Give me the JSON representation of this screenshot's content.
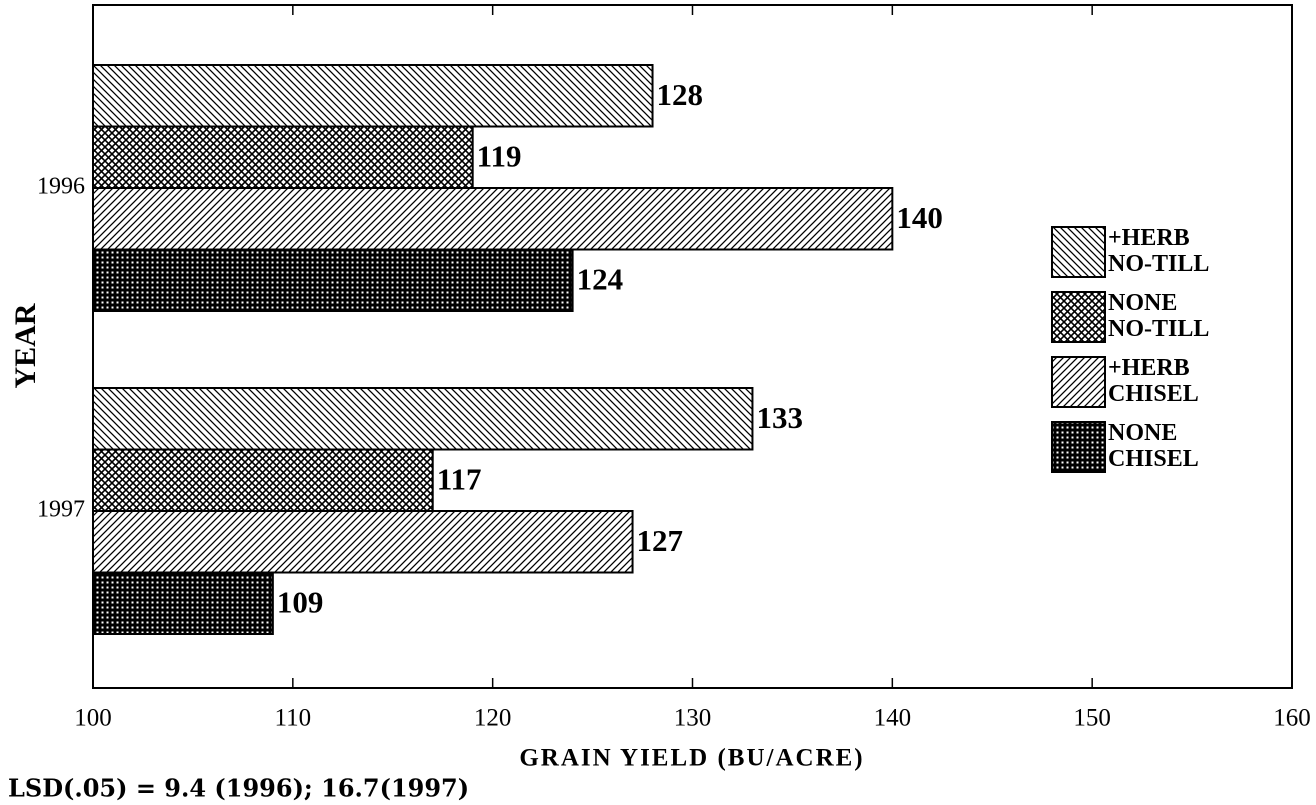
{
  "chart_data": {
    "type": "bar",
    "orientation": "horizontal",
    "categories": [
      "1996",
      "1997"
    ],
    "series": [
      {
        "name": "+HERB NO-TILL",
        "color": "#000000",
        "pattern": "backslash",
        "values": [
          128,
          133
        ]
      },
      {
        "name": "NONE NO-TILL",
        "color": "#000000",
        "pattern": "crosshatch",
        "values": [
          119,
          117
        ]
      },
      {
        "name": "+HERB CHISEL",
        "color": "#000000",
        "pattern": "slash",
        "values": [
          140,
          127
        ]
      },
      {
        "name": "NONE CHISEL",
        "color": "#000000",
        "pattern": "grid",
        "values": [
          124,
          109
        ]
      }
    ],
    "xlim": [
      100,
      160
    ],
    "xticks": [
      100,
      110,
      120,
      130,
      140,
      150,
      160
    ],
    "xlabel": "GRAIN YIELD (BU/ACRE)",
    "ylabel": "YEAR",
    "annotation": "LSD(.05) = 9.4 (1996); 16.7(1997)",
    "legend": "right",
    "grid": false
  }
}
